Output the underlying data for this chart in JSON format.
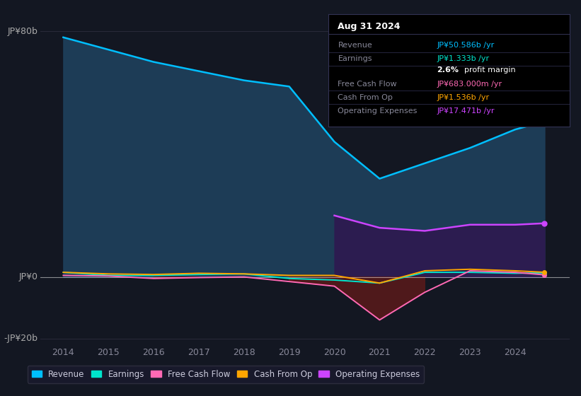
{
  "background_color": "#131722",
  "plot_bg_color": "#131722",
  "ylabel_top": "JP¥80b",
  "ylabel_zero": "JP¥0",
  "ylabel_bottom": "-JP¥20b",
  "years": [
    2014,
    2015,
    2016,
    2017,
    2018,
    2019,
    2020,
    2021,
    2022,
    2023,
    2024,
    2024.65
  ],
  "revenue": [
    78,
    74,
    70,
    67,
    64,
    62,
    44,
    32,
    37,
    42,
    48,
    50.586
  ],
  "operating_expenses": [
    0,
    0,
    0,
    0,
    0,
    0,
    20,
    16,
    15,
    17,
    17,
    17.471
  ],
  "earnings": [
    1.5,
    0.5,
    0.5,
    0.8,
    1.0,
    -0.5,
    -1.0,
    -2.0,
    1.5,
    1.5,
    1.2,
    1.333
  ],
  "free_cash_flow": [
    0.5,
    0.3,
    -0.5,
    -0.2,
    0.0,
    -1.5,
    -3.0,
    -14,
    -5,
    2.0,
    1.5,
    0.683
  ],
  "cash_from_op": [
    1.5,
    1.0,
    0.8,
    1.2,
    1.0,
    0.5,
    0.5,
    -2.0,
    2.0,
    2.5,
    2.0,
    1.536
  ],
  "revenue_color": "#00bfff",
  "earnings_color": "#00e5cc",
  "free_cash_flow_color": "#ff69b4",
  "cash_from_op_color": "#ffa500",
  "op_expenses_color": "#cc44ff",
  "ylim_min": -22,
  "ylim_max": 85,
  "info_box_title": "Aug 31 2024",
  "info_rows": [
    {
      "label": "Revenue",
      "value": "JP¥50.586b /yr",
      "value_color": "#00bfff"
    },
    {
      "label": "Earnings",
      "value": "JP¥1.333b /yr",
      "value_color": "#00e5cc"
    },
    {
      "label": "",
      "value": "",
      "value_color": "#ffffff"
    },
    {
      "label": "Free Cash Flow",
      "value": "JP¥683.000m /yr",
      "value_color": "#ff69b4"
    },
    {
      "label": "Cash From Op",
      "value": "JP¥1.536b /yr",
      "value_color": "#ffa500"
    },
    {
      "label": "Operating Expenses",
      "value": "JP¥17.471b /yr",
      "value_color": "#cc44ff"
    }
  ],
  "legend_items": [
    {
      "label": "Revenue",
      "color": "#00bfff"
    },
    {
      "label": "Earnings",
      "color": "#00e5cc"
    },
    {
      "label": "Free Cash Flow",
      "color": "#ff69b4"
    },
    {
      "label": "Cash From Op",
      "color": "#ffa500"
    },
    {
      "label": "Operating Expenses",
      "color": "#cc44ff"
    }
  ]
}
